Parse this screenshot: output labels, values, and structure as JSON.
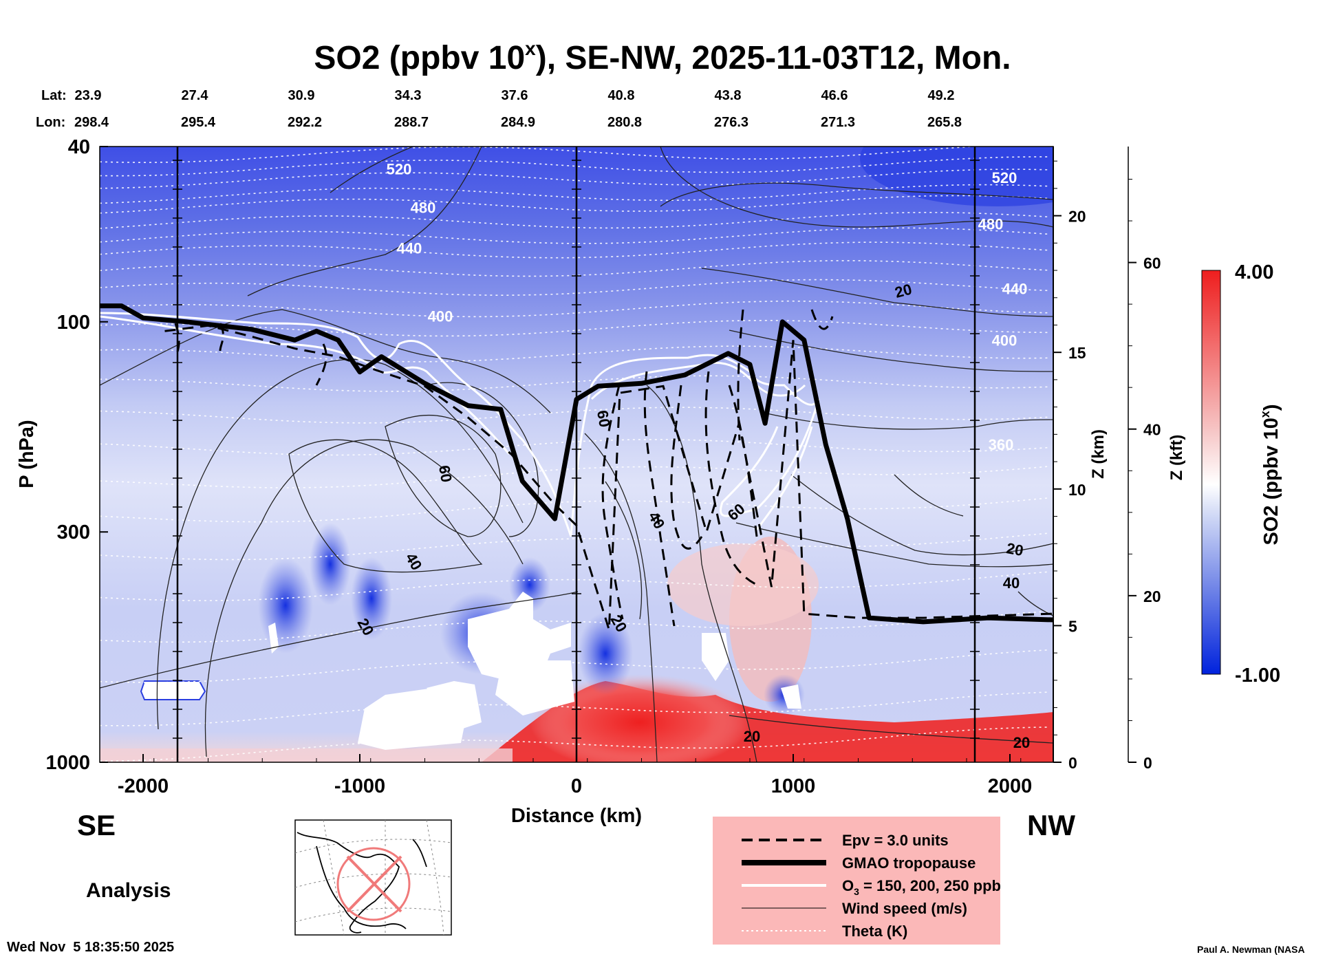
{
  "chart_data": {
    "type": "contour-cross-section",
    "title": "SO2 (ppbv 10x), SE-NW, 2025-11-03T12, Mon.",
    "title_parts": {
      "main": "SO2 (ppbv 10",
      "sup": "x",
      "rest": "), SE-NW, 2025-11-03T12, Mon."
    },
    "xlabel": "Distance (km)",
    "ylabel": "P (hPa)",
    "xlim": [
      -2200,
      2200
    ],
    "ylim_hPa": [
      1000,
      40
    ],
    "x_ticks": [
      -2000,
      -1000,
      0,
      1000,
      2000
    ],
    "x_tick_labels": [
      "-2000",
      "-1000",
      "0",
      "1000",
      "2000"
    ],
    "y_ticks": [
      40,
      100,
      300,
      1000
    ],
    "y_tick_labels": [
      "40",
      "100",
      "300",
      "1000"
    ],
    "z_km_ticks": [
      0,
      5,
      10,
      15,
      20
    ],
    "z_km_labels": [
      "0",
      "5",
      "10",
      "15",
      "20"
    ],
    "z_km_label": "Z (km)",
    "z_kft_ticks": [
      0,
      20,
      40,
      60
    ],
    "z_kft_labels": [
      "0",
      "20",
      "40",
      "60"
    ],
    "z_kft_label": "Z (kft)",
    "lat_header": "Lat:",
    "lon_header": "Lon:",
    "lat_labels": [
      "23.9",
      "27.4",
      "30.9",
      "34.3",
      "37.6",
      "40.8",
      "43.8",
      "46.6",
      "49.2"
    ],
    "lon_labels": [
      "298.4",
      "295.4",
      "292.2",
      "288.7",
      "284.9",
      "280.8",
      "276.3",
      "271.3",
      "265.8"
    ],
    "colorbar": {
      "min": -1.0,
      "max": 4.0,
      "min_label": "-1.00",
      "max_label": "4.00",
      "label_main": "SO2 (ppbv 10",
      "label_sup": "x",
      "label_rest": ")",
      "colors": [
        "#0022dd",
        "#6a7fe6",
        "#d4dcf6",
        "#ffffff",
        "#f6c7c7",
        "#ee3030"
      ]
    },
    "theta_contours_K": [
      {
        "value": 520,
        "label": "520",
        "y_hpa": 45
      },
      {
        "value": 480,
        "label": "480",
        "y_hpa": 55
      },
      {
        "value": 440,
        "label": "440",
        "y_hpa": 68
      },
      {
        "value": 400,
        "label": "400",
        "y_hpa": 97
      },
      {
        "value": 360,
        "label": "360",
        "y_hpa": 190
      }
    ],
    "wind_speed_labels_ms": [
      "20",
      "60",
      "40",
      "20",
      "20",
      "40",
      "60",
      "20",
      "60",
      "40",
      "20",
      "20"
    ],
    "tropopause_path_hpa": [
      [
        -2200,
        92
      ],
      [
        -2100,
        92
      ],
      [
        -2000,
        98
      ],
      [
        -1800,
        100
      ],
      [
        -1500,
        104
      ],
      [
        -1300,
        110
      ],
      [
        -1200,
        105
      ],
      [
        -1100,
        110
      ],
      [
        -1000,
        130
      ],
      [
        -900,
        120
      ],
      [
        -700,
        138
      ],
      [
        -500,
        155
      ],
      [
        -350,
        158
      ],
      [
        -250,
        230
      ],
      [
        -100,
        280
      ],
      [
        0,
        150
      ],
      [
        100,
        140
      ],
      [
        300,
        138
      ],
      [
        500,
        132
      ],
      [
        700,
        118
      ],
      [
        800,
        125
      ],
      [
        870,
        170
      ],
      [
        950,
        100
      ],
      [
        1050,
        110
      ],
      [
        1150,
        190
      ],
      [
        1250,
        280
      ],
      [
        1350,
        470
      ],
      [
        1600,
        480
      ],
      [
        1900,
        470
      ],
      [
        2200,
        475
      ]
    ],
    "pv_dashed_path_hpa": [
      [
        -1900,
        105
      ],
      [
        -1700,
        102
      ],
      [
        -1500,
        108
      ],
      [
        -1300,
        115
      ],
      [
        -1100,
        120
      ],
      [
        -900,
        130
      ],
      [
        -700,
        140
      ],
      [
        -500,
        165
      ],
      [
        -300,
        200
      ],
      [
        -100,
        260
      ],
      [
        0,
        290
      ],
      [
        150,
        500
      ],
      [
        200,
        145
      ],
      [
        400,
        140
      ],
      [
        600,
        300
      ],
      [
        750,
        170
      ],
      [
        900,
        400
      ],
      [
        1000,
        110
      ],
      [
        1050,
        460
      ],
      [
        1300,
        470
      ],
      [
        1600,
        470
      ],
      [
        2200,
        460
      ]
    ],
    "legend": [
      {
        "style": "dashed",
        "label": "Epv = 3.0 units"
      },
      {
        "style": "thick-black",
        "label": "GMAO tropopause"
      },
      {
        "style": "white",
        "label_main": "O",
        "label_sub": "3",
        "label_rest": " = 150, 200, 250 ppb"
      },
      {
        "style": "thin-black",
        "label": "Wind speed (m/s)"
      },
      {
        "style": "dotted-white",
        "label": "Theta (K)"
      }
    ]
  },
  "labels": {
    "left_direction": "SE",
    "right_direction": "NW",
    "mode": "Analysis",
    "timestamp": "Wed Nov  5 18:35:50 2025",
    "credit": "Paul A. Newman (NASA"
  },
  "colors": {
    "tropopause": "#000000",
    "o3": "#ffffff",
    "legend_bg": "#fbb8b8",
    "map_ring": "#f07a7a"
  }
}
